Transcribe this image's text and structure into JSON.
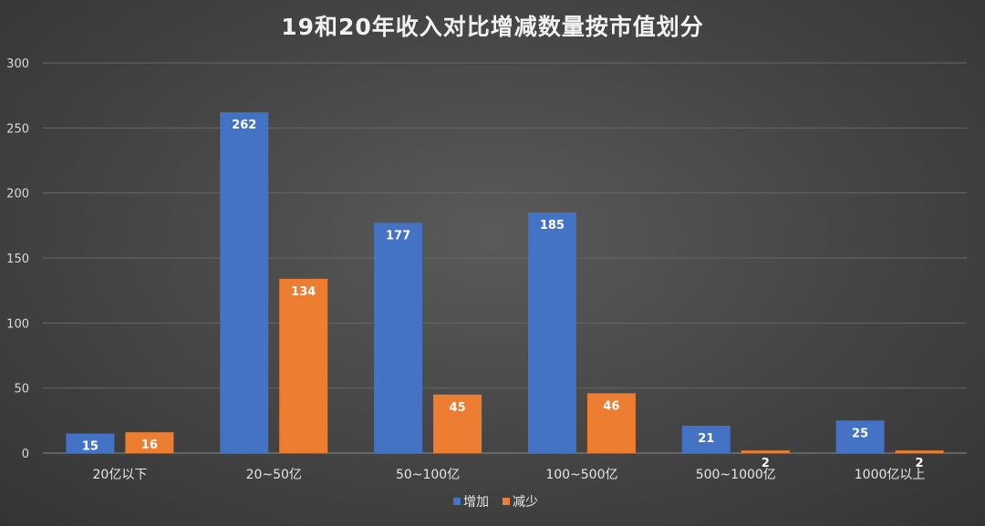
{
  "chart_data": {
    "type": "bar",
    "title": "19和20年收入对比增减数量按市值划分",
    "categories": [
      "20亿以下",
      "20~50亿",
      "50~100亿",
      "100~500亿",
      "500~1000亿",
      "1000亿以上"
    ],
    "series": [
      {
        "name": "增加",
        "values": [
          15,
          262,
          177,
          185,
          21,
          25
        ],
        "color": "#4472c4"
      },
      {
        "name": "减少",
        "values": [
          16,
          134,
          45,
          46,
          2,
          2
        ],
        "color": "#ed7d31"
      }
    ],
    "ylim": [
      0,
      300
    ],
    "yticks": [
      0,
      50,
      100,
      150,
      200,
      250,
      300
    ],
    "grid": true,
    "legend": "bottom"
  }
}
